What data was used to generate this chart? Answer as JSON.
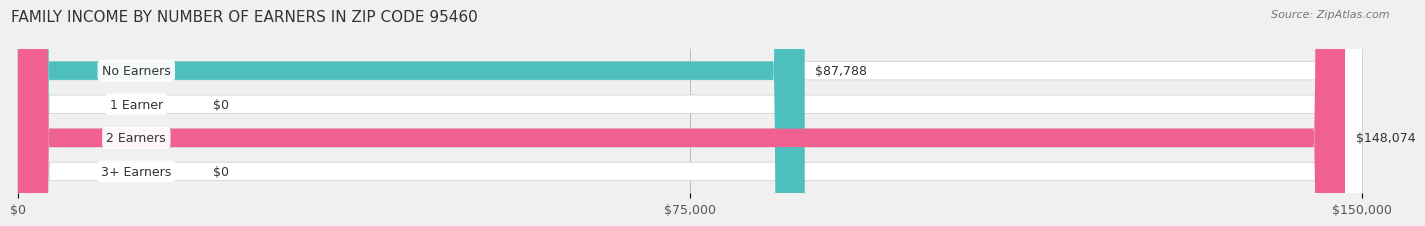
{
  "title": "FAMILY INCOME BY NUMBER OF EARNERS IN ZIP CODE 95460",
  "source": "Source: ZipAtlas.com",
  "categories": [
    "No Earners",
    "1 Earner",
    "2 Earners",
    "3+ Earners"
  ],
  "values": [
    87788,
    0,
    148074,
    0
  ],
  "max_value": 150000,
  "bar_colors": [
    "#4dbfbf",
    "#a0a0d0",
    "#f06090",
    "#f0c898"
  ],
  "background_color": "#f0f0f0",
  "label_values": [
    "$87,788",
    "$0",
    "$148,074",
    "$0"
  ],
  "x_ticks": [
    0,
    75000,
    150000
  ],
  "x_tick_labels": [
    "$0",
    "$75,000",
    "$150,000"
  ],
  "title_fontsize": 11,
  "source_fontsize": 8,
  "label_fontsize": 9,
  "tick_fontsize": 9
}
